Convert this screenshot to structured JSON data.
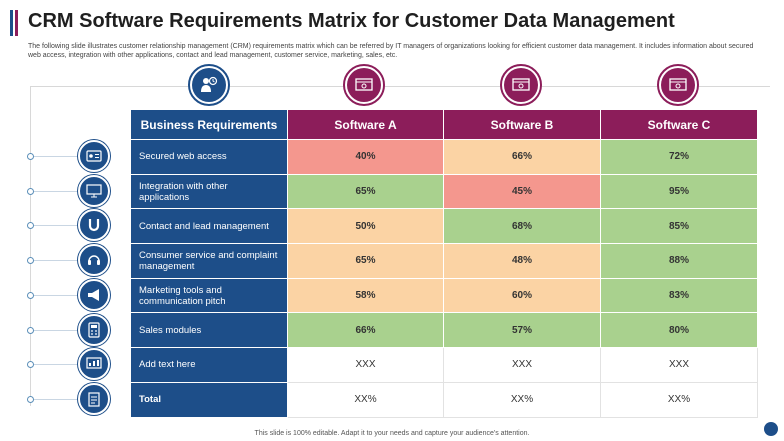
{
  "slide": {
    "title": "CRM Software Requirements Matrix for Customer Data Management",
    "description": "The following slide illustrates customer relationship management (CRM) requirements matrix which can be referred by IT managers of organizations looking for efficient customer data management. It includes information about secured web access, integration with other applications, contact and lead management, customer service, marketing, sales, etc.",
    "footer": "This slide is 100% editable. Adapt it to your needs and capture your audience's attention."
  },
  "colors": {
    "navy": "#1d4e89",
    "plum": "#8c1d5a",
    "red": "#f4978e",
    "orange": "#fbd3a4",
    "green": "#a9d18e"
  },
  "table": {
    "headers": [
      "Business Requirements",
      "Software A",
      "Software B",
      "Software C"
    ],
    "rows": [
      {
        "label": "Secured web access",
        "icon": "id-card-icon",
        "a": "40%",
        "b": "66%",
        "c": "72%",
        "ca": "red",
        "cb": "orange",
        "cc": "green"
      },
      {
        "label": "Integration with other applications",
        "icon": "monitor-icon",
        "a": "65%",
        "b": "45%",
        "c": "95%",
        "ca": "green",
        "cb": "red",
        "cc": "green"
      },
      {
        "label": "Contact and lead management",
        "icon": "magnet-icon",
        "a": "50%",
        "b": "68%",
        "c": "85%",
        "ca": "orange",
        "cb": "green",
        "cc": "green"
      },
      {
        "label": "Consumer service and complaint management",
        "icon": "headset-icon",
        "a": "65%",
        "b": "48%",
        "c": "88%",
        "ca": "orange",
        "cb": "orange",
        "cc": "green"
      },
      {
        "label": "Marketing tools and communication pitch",
        "icon": "megaphone-icon",
        "a": "58%",
        "b": "60%",
        "c": "83%",
        "ca": "orange",
        "cb": "orange",
        "cc": "green"
      },
      {
        "label": "Sales modules",
        "icon": "calculator-icon",
        "a": "66%",
        "b": "57%",
        "c": "80%",
        "ca": "green",
        "cb": "green",
        "cc": "green"
      },
      {
        "label": "Add text here",
        "icon": "dashboard-icon",
        "a": "XXX",
        "b": "XXX",
        "c": "XXX",
        "ca": "none",
        "cb": "none",
        "cc": "none"
      },
      {
        "label": "Total",
        "icon": "checklist-icon",
        "a": "XX%",
        "b": "XX%",
        "c": "XX%",
        "ca": "none",
        "cb": "none",
        "cc": "none"
      }
    ]
  }
}
